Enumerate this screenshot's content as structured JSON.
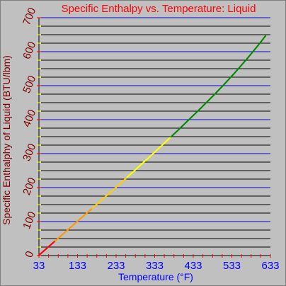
{
  "chart_data": {
    "type": "line",
    "title": "Specific Enthalpy vs. Temperature: Liquid",
    "xlabel": "Temperature (°F)",
    "ylabel": "Specific Enthalphy of Liquid (BTU/lbm)",
    "xlim": [
      33,
      633
    ],
    "ylim": [
      0,
      700
    ],
    "x_ticks": [
      33,
      133,
      233,
      333,
      433,
      533,
      633
    ],
    "x_tick_labels": [
      "33",
      "133",
      "233",
      "333",
      "433",
      "533",
      "633"
    ],
    "y_ticks": [
      0,
      100,
      200,
      300,
      400,
      500,
      600,
      700
    ],
    "y_tick_labels": [
      "0",
      "100",
      "200",
      "300",
      "400",
      "500",
      "600",
      "700"
    ],
    "grid": true,
    "grid_line_every": 25,
    "legend": "none",
    "colors": {
      "background": "#c0c0c0",
      "title": "#ff0000",
      "x_axis": "#0000ff",
      "y_axis": "#800000",
      "grid_major": "#0000cc",
      "grid_minor": "#000000",
      "tick_minor": "#ffff00"
    },
    "series": [
      {
        "x": [
          33,
          60,
          90,
          120,
          150,
          180,
          210,
          240,
          270,
          300,
          330,
          360,
          390,
          420,
          450,
          480,
          510,
          540,
          570,
          600,
          620
        ],
        "y": [
          1,
          28,
          58,
          88,
          118,
          148,
          178,
          208,
          239,
          270,
          301,
          333,
          365,
          398,
          431,
          465,
          500,
          537,
          576,
          617,
          646
        ],
        "segment_colors": [
          {
            "from": 33,
            "to": 75,
            "color": "#ff0000"
          },
          {
            "from": 75,
            "to": 170,
            "color": "#ff9900"
          },
          {
            "from": 170,
            "to": 260,
            "color": "#ffcc00"
          },
          {
            "from": 260,
            "to": 375,
            "color": "#ffff00"
          },
          {
            "from": 375,
            "to": 620,
            "color": "#008800"
          }
        ]
      }
    ]
  }
}
